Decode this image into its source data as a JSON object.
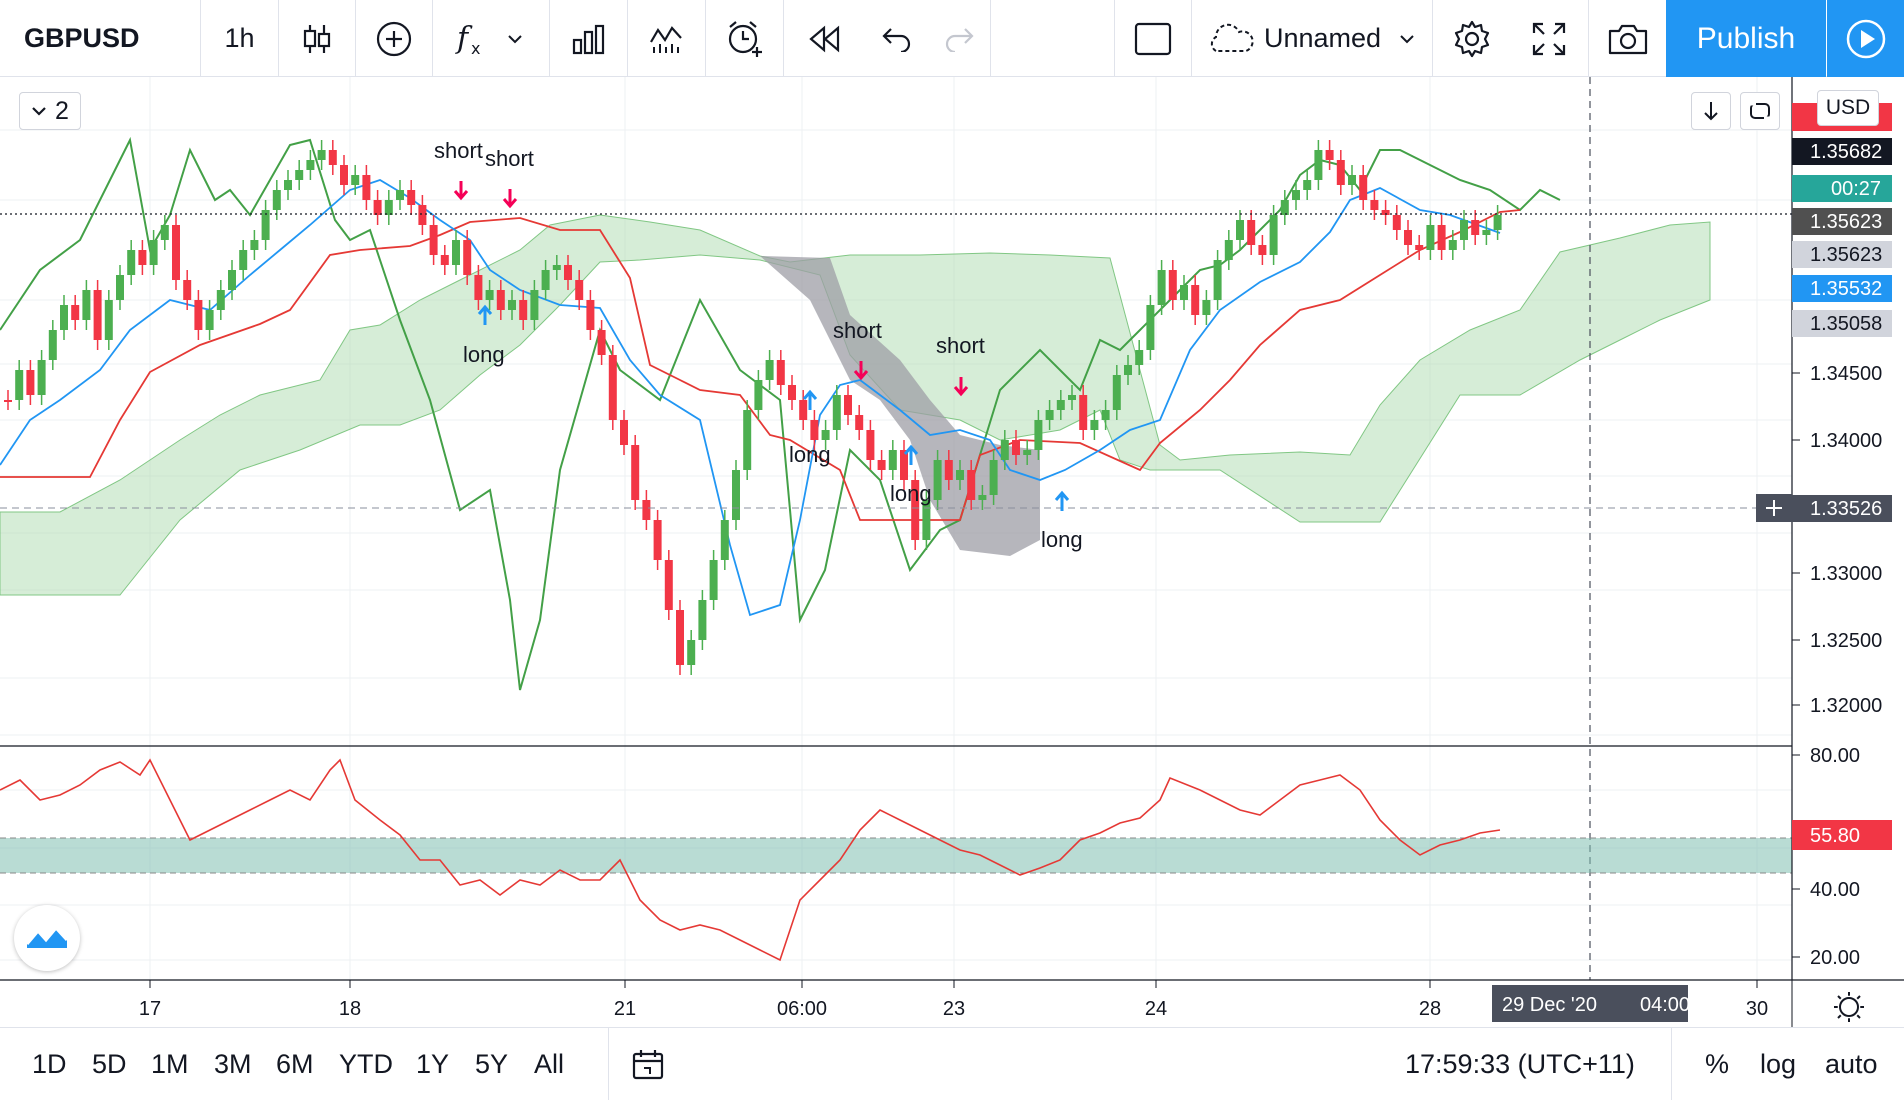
{
  "toolbar": {
    "symbol": "GBPUSD",
    "interval": "1h",
    "layout_name": "Unnamed",
    "publish_label": "Publish"
  },
  "legend": {
    "count": "2"
  },
  "price_scale": {
    "currency": "USD",
    "ticks": [
      "1.34500",
      "1.34000",
      "1.33500",
      "1.33000",
      "1.32500",
      "1.32000"
    ],
    "labels": {
      "l1": "1.35682",
      "l2": "1.35623",
      "l3": "1.35623",
      "l4": "1.35532",
      "l5": "1.35058",
      "countdown": "00:27",
      "crosshair": "1.33526"
    }
  },
  "rsi_scale": {
    "ticks": [
      "80.00",
      "40.00",
      "20.00"
    ],
    "value": "55.80"
  },
  "time_axis": {
    "ticks": [
      "17",
      "18",
      "21",
      "06:00",
      "23",
      "24",
      "28",
      "30"
    ],
    "crosshair_date": "29 Dec '20",
    "crosshair_time": "04:00"
  },
  "signals": {
    "short1": "short",
    "short2": "short",
    "short3": "short",
    "short4": "short",
    "long1": "long",
    "long2": "long",
    "long3": "long",
    "long4": "long"
  },
  "bottom": {
    "ranges": [
      "1D",
      "5D",
      "1M",
      "3M",
      "6M",
      "YTD",
      "1Y",
      "5Y",
      "All"
    ],
    "clock": "17:59:33 (UTC+11)",
    "percent": "%",
    "log": "log",
    "auto": "auto"
  },
  "colors": {
    "accent": "#2196f3",
    "bull": "#4caf50",
    "bear": "#f23645",
    "kijun": "#e53935",
    "tenkan": "#2196f3",
    "chikou": "#43a047",
    "cloud": "#a5d6a7",
    "rsi_band": "#7fbfb0"
  }
}
